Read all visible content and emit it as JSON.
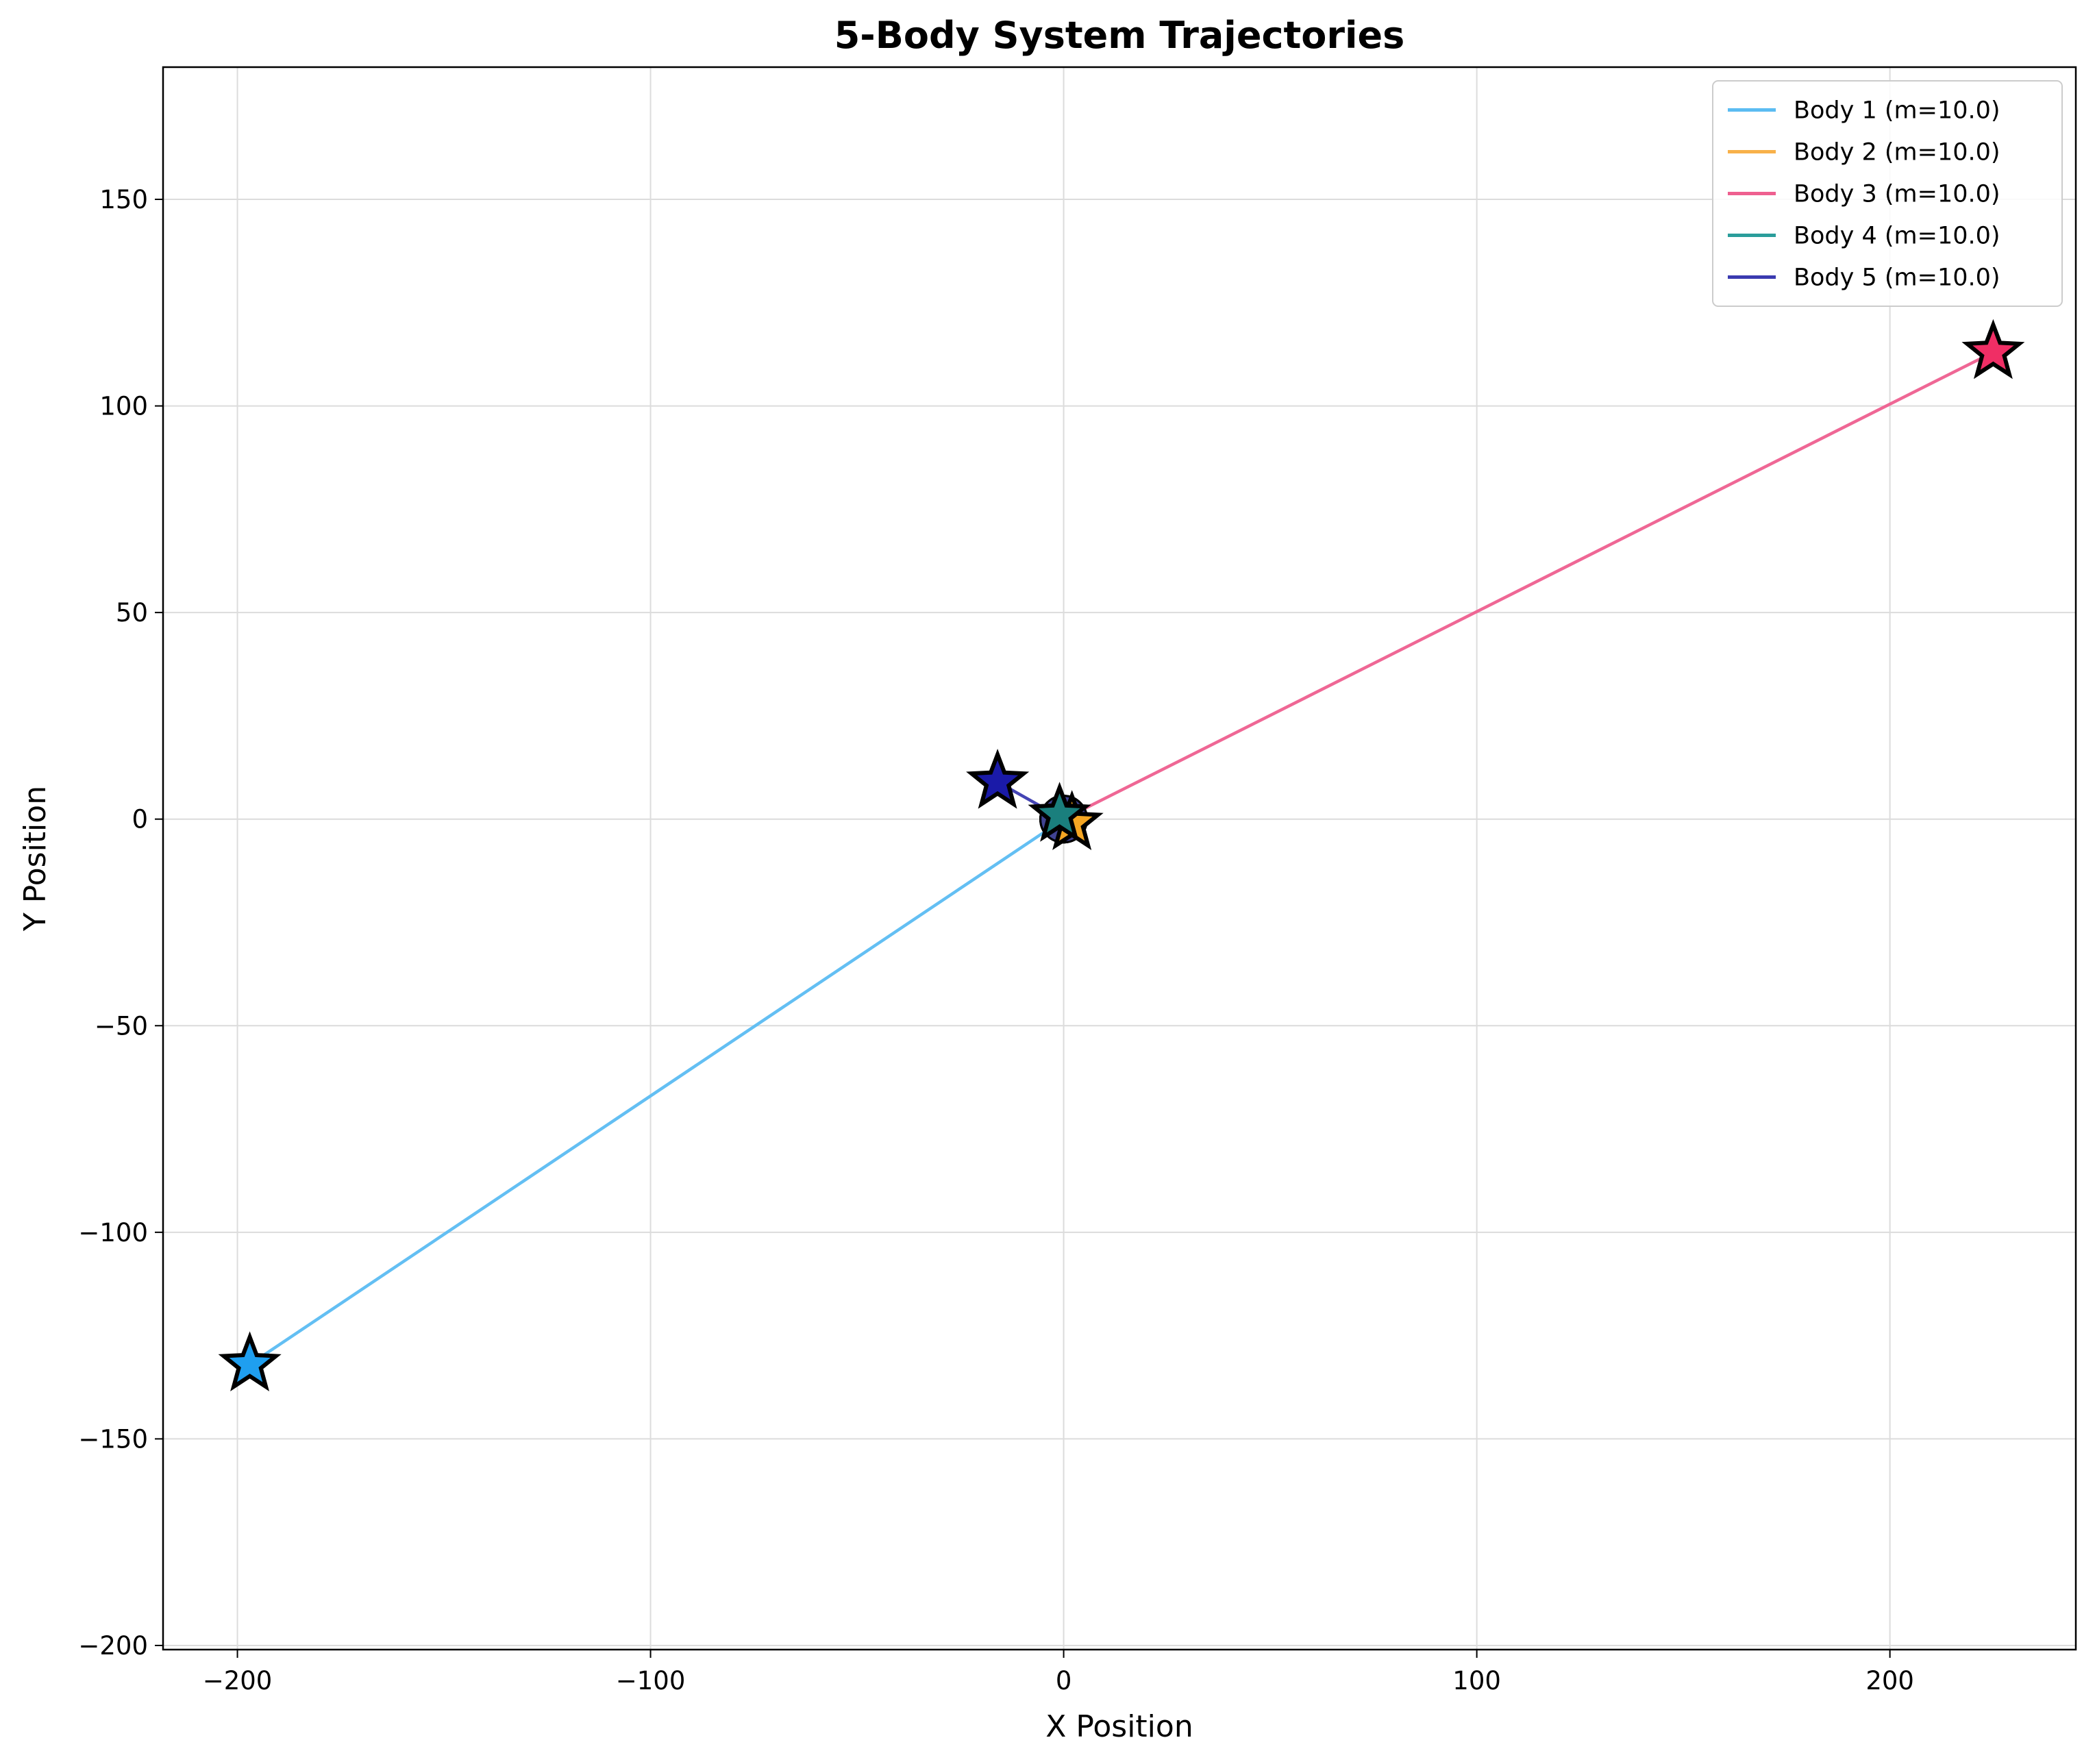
{
  "chart_data": {
    "type": "line",
    "title": "5-Body System Trajectories",
    "xlabel": "X Position",
    "ylabel": "Y Position",
    "xlim": [
      -218,
      245
    ],
    "ylim": [
      -201,
      182
    ],
    "xticks": [
      -200,
      -100,
      0,
      100,
      200
    ],
    "yticks": [
      -200,
      -150,
      -100,
      -50,
      0,
      50,
      100,
      150
    ],
    "grid": true,
    "legend_position": "top-right",
    "series": [
      {
        "name": "Body 1 (m=10.0)",
        "color": "#5bbcf2",
        "marker_color": "#1f9ff0",
        "x": [
          0,
          -197
        ],
        "y": [
          0,
          -132
        ]
      },
      {
        "name": "Body 2 (m=10.0)",
        "color": "#f8b14a",
        "marker_color": "#f5a623",
        "x": [
          0,
          2
        ],
        "y": [
          0,
          -1
        ]
      },
      {
        "name": "Body 3 (m=10.0)",
        "color": "#ee5f8f",
        "marker_color": "#f02e65",
        "x": [
          0,
          225
        ],
        "y": [
          0,
          113
        ]
      },
      {
        "name": "Body 4 (m=10.0)",
        "color": "#2a9d9b",
        "marker_color": "#1a7f7d",
        "x": [
          0,
          -1
        ],
        "y": [
          0,
          1
        ]
      },
      {
        "name": "Body 5 (m=10.0)",
        "color": "#3a3ab0",
        "marker_color": "#1a1aa8",
        "x": [
          0,
          -16
        ],
        "y": [
          0,
          9
        ]
      }
    ]
  }
}
